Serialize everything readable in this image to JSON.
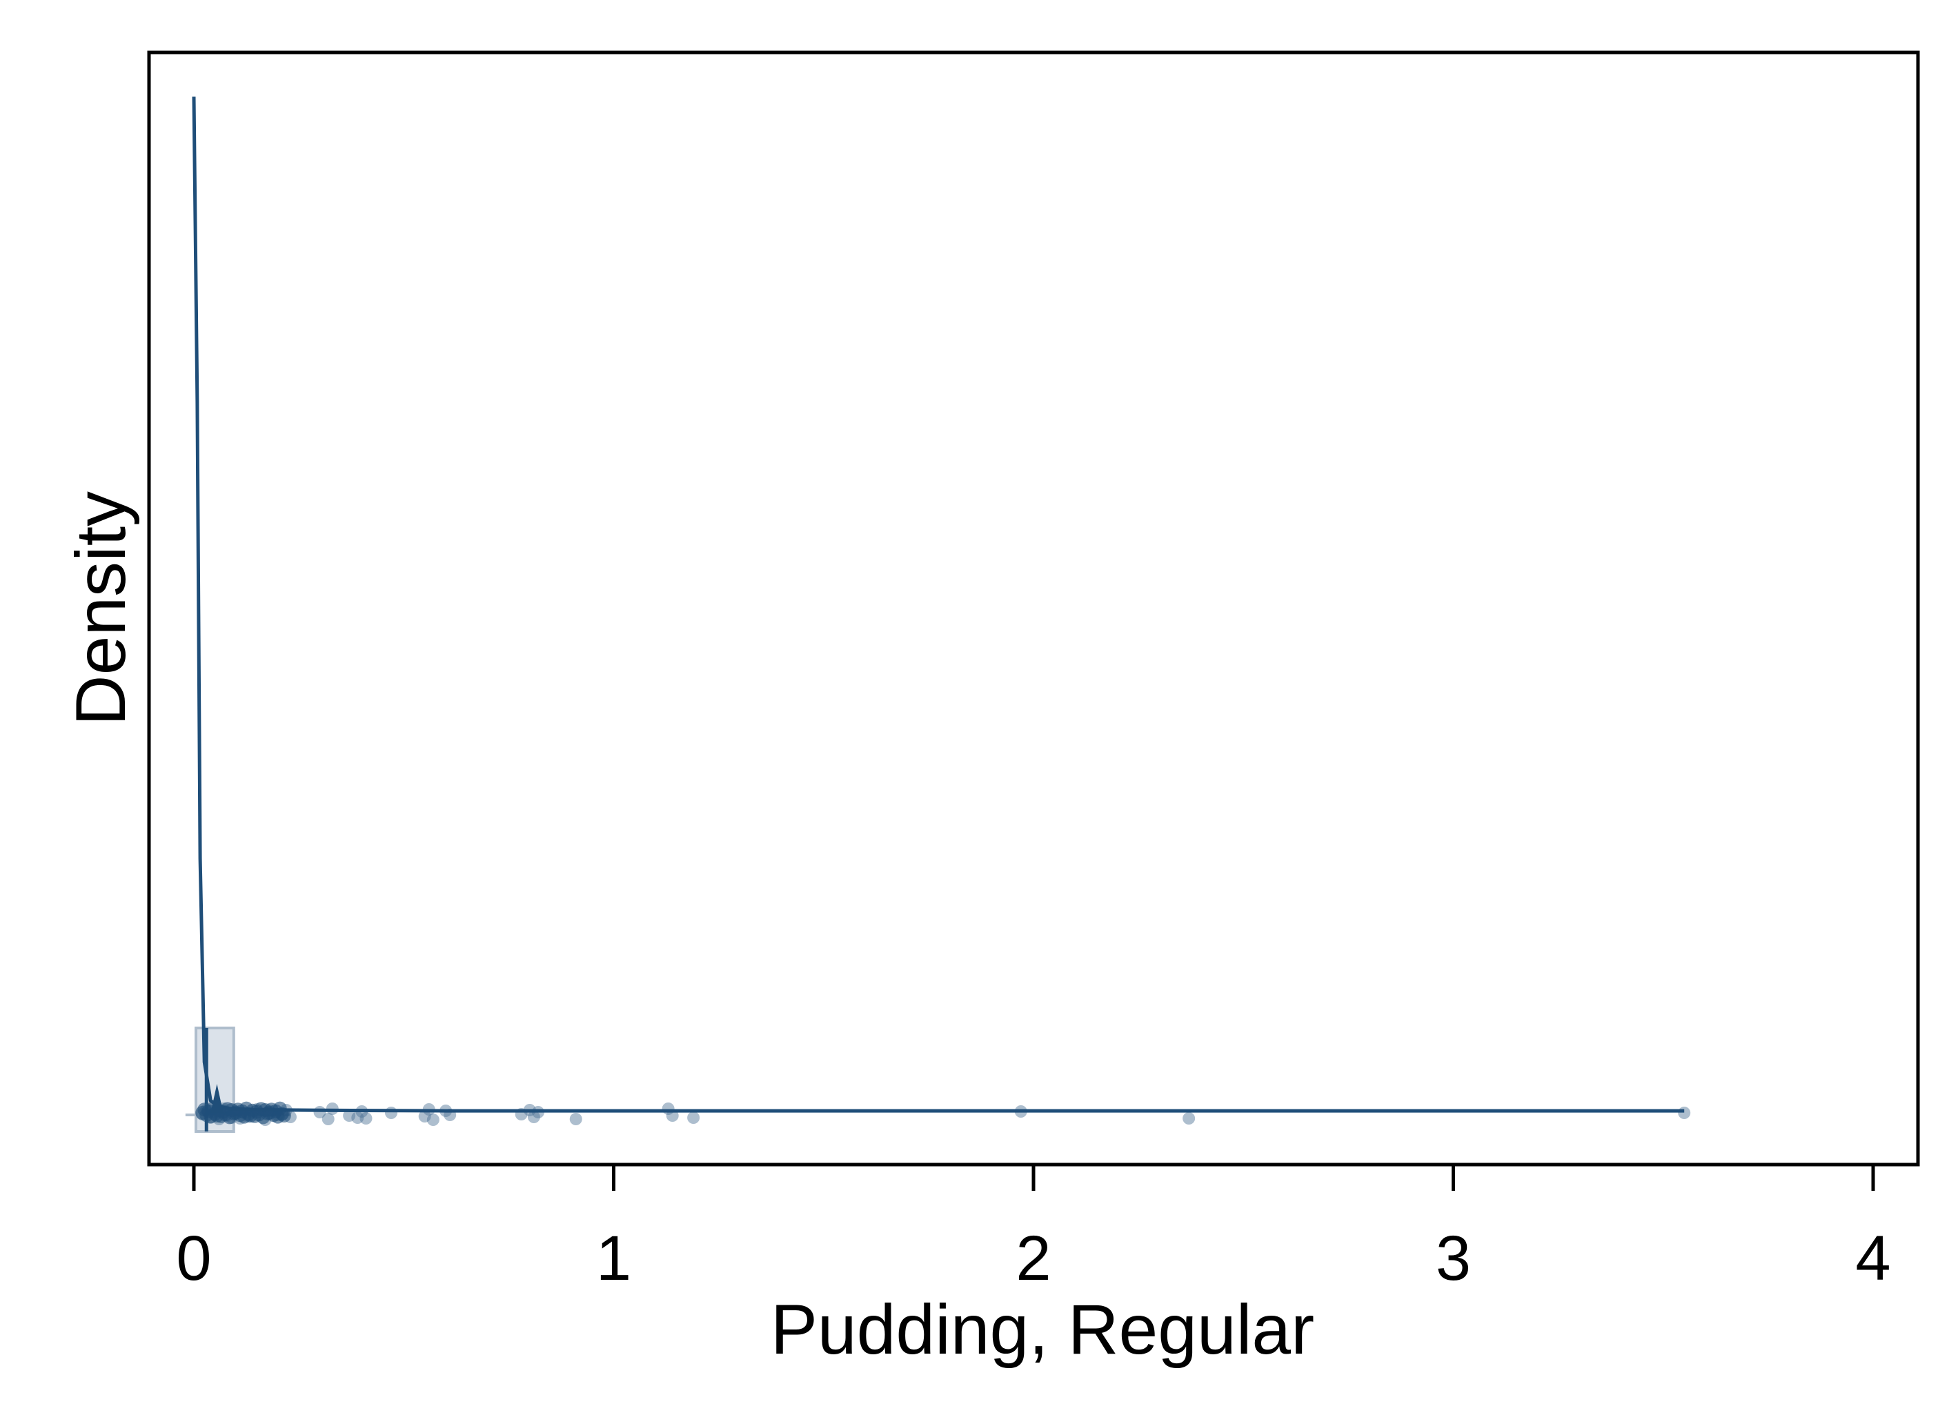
{
  "chart_data": {
    "type": "density",
    "xlabel": "Pudding, Regular",
    "ylabel": "Density",
    "xlim": [
      -0.1,
      4.1
    ],
    "x_ticks": [
      0,
      1,
      2,
      3,
      4
    ],
    "x_tick_labels": [
      "0",
      "1",
      "2",
      "3",
      "4"
    ],
    "y_ticks_shown": false,
    "grid": false,
    "legend": "none",
    "colors": {
      "line": "#1f4e79",
      "points": "#4a6f93",
      "box_fill": "#dbe2ea",
      "box_stroke": "#aebdcc",
      "frame": "#000000"
    },
    "density_curve": {
      "x": [
        0.0,
        0.008,
        0.015,
        0.025,
        0.04,
        0.06,
        0.09,
        0.15,
        0.3,
        0.6,
        1.0,
        1.5,
        2.0,
        2.5,
        3.0,
        3.55
      ],
      "y": [
        1.0,
        0.7,
        0.25,
        0.05,
        0.012,
        0.006,
        0.004,
        0.003,
        0.0025,
        0.002,
        0.002,
        0.002,
        0.002,
        0.002,
        0.002,
        0.002
      ]
    },
    "boxplot": {
      "q1": 0.005,
      "median": 0.03,
      "q3": 0.095,
      "whisker_low": -0.02,
      "whisker_high": 0.23
    },
    "observations": [
      0.02,
      0.03,
      0.04,
      0.05,
      0.06,
      0.07,
      0.08,
      0.09,
      0.1,
      0.11,
      0.12,
      0.13,
      0.15,
      0.17,
      0.18,
      0.2,
      0.21,
      0.22,
      0.23,
      0.3,
      0.32,
      0.33,
      0.37,
      0.39,
      0.4,
      0.41,
      0.47,
      0.55,
      0.56,
      0.57,
      0.6,
      0.61,
      0.78,
      0.8,
      0.81,
      0.82,
      0.91,
      1.13,
      1.14,
      1.19,
      1.97,
      2.37,
      3.55
    ]
  }
}
